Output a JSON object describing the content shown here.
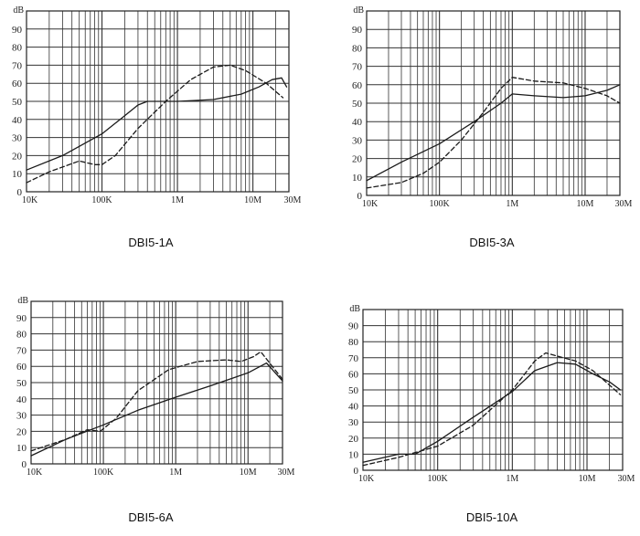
{
  "chart_data": [
    {
      "type": "line",
      "title": "DBI5-1A",
      "xscale": "log",
      "xlim": [
        10000,
        30000000
      ],
      "ylim": [
        0,
        100
      ],
      "yunit": "dB",
      "ytick_labels": [
        "0",
        "10",
        "20",
        "30",
        "40",
        "50",
        "60",
        "70",
        "80",
        "90"
      ],
      "xtick_labels": [
        "10K",
        "100K",
        "1M",
        "10M",
        "30M"
      ],
      "series": [
        {
          "style": "solid",
          "x": [
            10000,
            30000,
            100000,
            200000,
            300000,
            400000,
            600000,
            1000000,
            3000000,
            7000000,
            12000000,
            18000000,
            24000000,
            28000000
          ],
          "y": [
            12,
            20,
            32,
            42,
            48,
            50,
            50,
            50,
            51,
            54,
            58,
            62,
            63,
            58
          ]
        },
        {
          "style": "dashed",
          "x": [
            10000,
            20000,
            50000,
            80000,
            100000,
            150000,
            300000,
            700000,
            1500000,
            3000000,
            5000000,
            8000000,
            15000000,
            25000000
          ],
          "y": [
            5,
            11,
            17,
            15,
            15,
            20,
            35,
            50,
            62,
            69,
            70,
            67,
            60,
            52
          ]
        }
      ]
    },
    {
      "type": "line",
      "title": "DBI5-3A",
      "xscale": "log",
      "xlim": [
        10000,
        30000000
      ],
      "ylim": [
        0,
        100
      ],
      "yunit": "dB",
      "ytick_labels": [
        "0",
        "10",
        "20",
        "30",
        "40",
        "50",
        "60",
        "70",
        "80",
        "90"
      ],
      "xtick_labels": [
        "10K",
        "100K",
        "1M",
        "10M",
        "30M"
      ],
      "series": [
        {
          "style": "solid",
          "x": [
            10000,
            30000,
            100000,
            300000,
            700000,
            1000000,
            2000000,
            5000000,
            10000000,
            20000000,
            30000000
          ],
          "y": [
            8,
            18,
            28,
            40,
            50,
            55,
            54,
            53,
            54,
            57,
            60
          ]
        },
        {
          "style": "dashed",
          "x": [
            10000,
            30000,
            60000,
            100000,
            200000,
            400000,
            700000,
            1000000,
            2000000,
            5000000,
            10000000,
            20000000,
            30000000
          ],
          "y": [
            4,
            7,
            12,
            18,
            30,
            45,
            58,
            64,
            62,
            61,
            58,
            54,
            50
          ]
        }
      ]
    },
    {
      "type": "line",
      "title": "DBI5-6A",
      "xscale": "log",
      "xlim": [
        10000,
        30000000
      ],
      "ylim": [
        0,
        100
      ],
      "yunit": "dB",
      "ytick_labels": [
        "0",
        "10",
        "20",
        "30",
        "40",
        "50",
        "60",
        "70",
        "80",
        "90"
      ],
      "xtick_labels": [
        "10K",
        "100K",
        "1M",
        "10M",
        "30M"
      ],
      "series": [
        {
          "style": "solid",
          "x": [
            10000,
            30000,
            100000,
            300000,
            1000000,
            3000000,
            10000000,
            18000000,
            30000000
          ],
          "y": [
            5,
            15,
            24,
            33,
            41,
            48,
            56,
            62,
            51
          ]
        },
        {
          "style": "dashed",
          "x": [
            10000,
            30000,
            60000,
            90000,
            150000,
            300000,
            800000,
            2000000,
            5000000,
            8000000,
            12000000,
            15000000,
            30000000
          ],
          "y": [
            8,
            15,
            21,
            20,
            28,
            45,
            58,
            63,
            64,
            63,
            66,
            69,
            52
          ]
        }
      ]
    },
    {
      "type": "line",
      "title": "DBI5-10A",
      "xscale": "log",
      "xlim": [
        10000,
        30000000
      ],
      "ylim": [
        0,
        100
      ],
      "yunit": "dB",
      "ytick_labels": [
        "0",
        "10",
        "20",
        "30",
        "40",
        "50",
        "60",
        "70",
        "80",
        "90"
      ],
      "xtick_labels": [
        "10K",
        "100K",
        "1M",
        "10M",
        "30M"
      ],
      "series": [
        {
          "style": "solid",
          "x": [
            10000,
            30000,
            50000,
            100000,
            300000,
            1000000,
            2000000,
            4000000,
            7000000,
            12000000,
            20000000,
            28000000
          ],
          "y": [
            5,
            10,
            10,
            18,
            33,
            49,
            62,
            67,
            66,
            60,
            55,
            50
          ]
        },
        {
          "style": "dashed",
          "x": [
            10000,
            30000,
            50000,
            100000,
            300000,
            1000000,
            2000000,
            2800000,
            4000000,
            7000000,
            12000000,
            20000000,
            28000000
          ],
          "y": [
            3,
            8,
            11,
            15,
            28,
            50,
            68,
            73,
            71,
            68,
            62,
            53,
            47
          ]
        }
      ]
    }
  ]
}
